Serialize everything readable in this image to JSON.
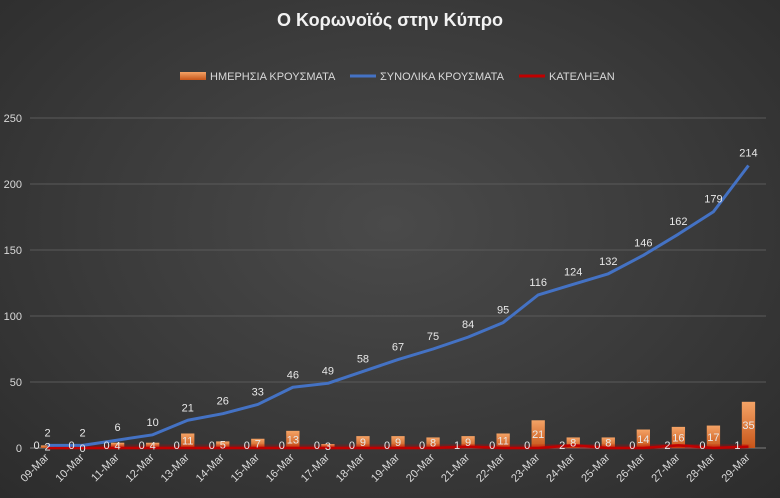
{
  "chart_data": {
    "type": "bar+line",
    "title": "Ο Κορωνοϊός στην Κύπρο",
    "categories": [
      "09-Mar",
      "10-Mar",
      "11-Mar",
      "12-Mar",
      "13-Mar",
      "14-Mar",
      "15-Mar",
      "16-Mar",
      "17-Mar",
      "18-Mar",
      "19-Mar",
      "20-Mar",
      "21-Mar",
      "22-Mar",
      "23-Mar",
      "24-Mar",
      "25-Mar",
      "26-Mar",
      "27-Mar",
      "28-Mar",
      "29-Mar"
    ],
    "ylim": [
      0,
      250
    ],
    "yticks": [
      0,
      50,
      100,
      150,
      200,
      250
    ],
    "grid": true,
    "legend_position": "top",
    "series": [
      {
        "name": "ΗΜΕΡΗΣΙΑ ΚΡΟΥΣΜΑΤΑ",
        "type": "bar",
        "color": "#ed7d31",
        "values": [
          2,
          0,
          4,
          4,
          11,
          5,
          7,
          13,
          3,
          9,
          9,
          8,
          9,
          11,
          21,
          8,
          8,
          14,
          16,
          17,
          35
        ]
      },
      {
        "name": "ΣΥΝΟΛΙΚΑ ΚΡΟΥΣΜΑΤΑ",
        "type": "line",
        "color": "#4472c4",
        "values": [
          2,
          2,
          6,
          10,
          21,
          26,
          33,
          46,
          49,
          58,
          67,
          75,
          84,
          95,
          116,
          124,
          132,
          146,
          162,
          179,
          214
        ]
      },
      {
        "name": "ΚΑΤΕΛΗΞΑΝ",
        "type": "line",
        "color": "#c00000",
        "values": [
          0,
          0,
          0,
          0,
          0,
          0,
          0,
          0,
          0,
          0,
          0,
          0,
          1,
          0,
          0,
          2,
          0,
          0,
          2,
          0,
          1
        ]
      }
    ]
  }
}
